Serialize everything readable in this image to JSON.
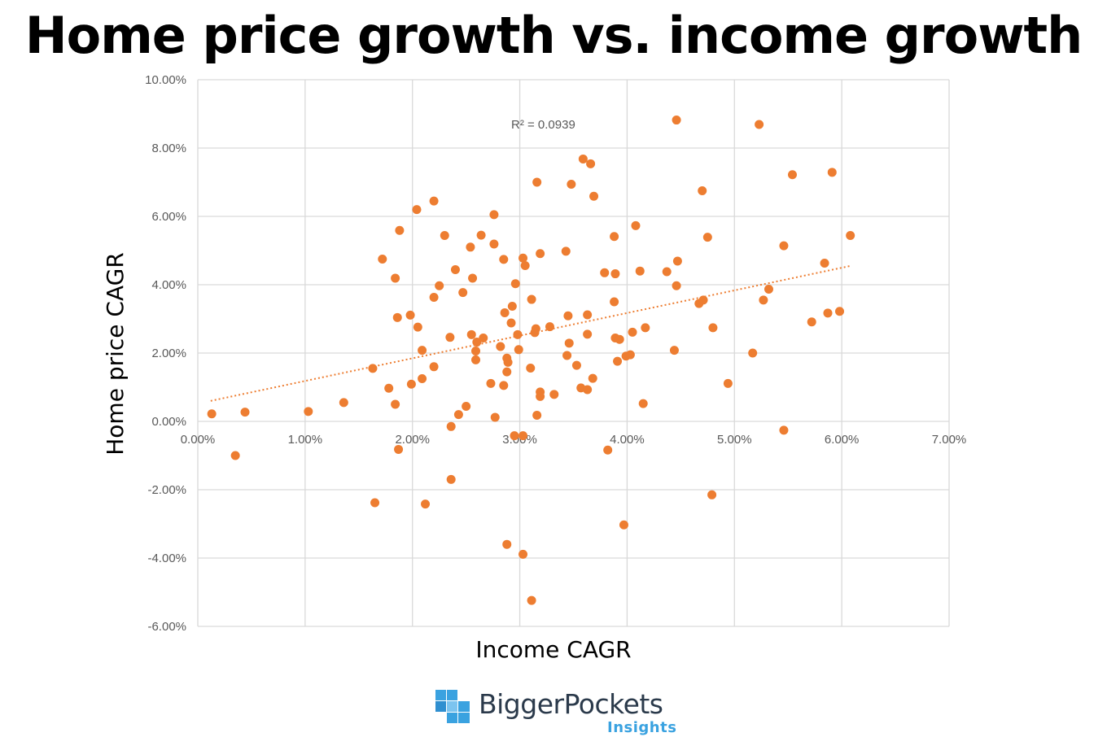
{
  "title": "Home price growth vs. income growth",
  "chart_data": {
    "type": "scatter",
    "xlabel": "Income CAGR",
    "ylabel": "Home price CAGR",
    "xlim": [
      0,
      7
    ],
    "ylim": [
      -6,
      10
    ],
    "x_ticks": [
      "0.00%",
      "1.00%",
      "2.00%",
      "3.00%",
      "4.00%",
      "5.00%",
      "6.00%",
      "7.00%"
    ],
    "y_ticks": [
      "10.00%",
      "8.00%",
      "6.00%",
      "4.00%",
      "2.00%",
      "0.00%",
      "-2.00%",
      "-4.00%",
      "-6.00%"
    ],
    "grid": true,
    "marker_color": "#ED7D31",
    "trendline": {
      "type": "linear",
      "style": "dotted",
      "color": "#ED7D31",
      "x": [
        0.12,
        6.08
      ],
      "y": [
        0.6,
        4.55
      ]
    },
    "annotation": "R² = 0.0939",
    "points": [
      [
        0.13,
        0.22
      ],
      [
        0.44,
        0.27
      ],
      [
        1.03,
        0.29
      ],
      [
        1.36,
        0.55
      ],
      [
        0.35,
        -1.0
      ],
      [
        1.63,
        1.55
      ],
      [
        1.72,
        4.75
      ],
      [
        1.78,
        0.97
      ],
      [
        1.84,
        4.19
      ],
      [
        1.86,
        3.04
      ],
      [
        1.84,
        0.5
      ],
      [
        1.88,
        5.59
      ],
      [
        1.87,
        -0.82
      ],
      [
        1.65,
        -2.38
      ],
      [
        1.98,
        3.11
      ],
      [
        2.04,
        6.2
      ],
      [
        2.05,
        2.76
      ],
      [
        2.09,
        2.08
      ],
      [
        2.09,
        1.25
      ],
      [
        1.99,
        1.09
      ],
      [
        2.12,
        -2.42
      ],
      [
        2.2,
        6.45
      ],
      [
        2.2,
        3.63
      ],
      [
        2.2,
        1.6
      ],
      [
        2.25,
        3.97
      ],
      [
        2.3,
        5.44
      ],
      [
        2.35,
        2.46
      ],
      [
        2.36,
        -0.15
      ],
      [
        2.36,
        -1.7
      ],
      [
        2.4,
        4.44
      ],
      [
        2.43,
        0.2
      ],
      [
        2.47,
        3.77
      ],
      [
        2.5,
        0.44
      ],
      [
        2.54,
        5.1
      ],
      [
        2.55,
        2.54
      ],
      [
        2.56,
        4.19
      ],
      [
        2.59,
        2.06
      ],
      [
        2.6,
        2.32
      ],
      [
        2.59,
        1.8
      ],
      [
        2.64,
        5.45
      ],
      [
        2.66,
        2.44
      ],
      [
        2.73,
        1.11
      ],
      [
        2.76,
        6.05
      ],
      [
        2.76,
        5.19
      ],
      [
        2.77,
        0.12
      ],
      [
        2.82,
        2.19
      ],
      [
        2.85,
        4.74
      ],
      [
        2.86,
        3.18
      ],
      [
        2.85,
        1.05
      ],
      [
        2.88,
        1.85
      ],
      [
        2.88,
        1.45
      ],
      [
        2.89,
        1.73
      ],
      [
        2.88,
        -3.6
      ],
      [
        2.93,
        3.37
      ],
      [
        2.92,
        2.88
      ],
      [
        2.96,
        4.03
      ],
      [
        2.98,
        2.54
      ],
      [
        2.99,
        2.1
      ],
      [
        2.95,
        -0.42
      ],
      [
        3.03,
        -0.42
      ],
      [
        3.03,
        4.78
      ],
      [
        3.05,
        4.56
      ],
      [
        3.03,
        -3.89
      ],
      [
        3.11,
        3.57
      ],
      [
        3.1,
        1.56
      ],
      [
        3.11,
        -5.24
      ],
      [
        3.14,
        2.6
      ],
      [
        3.15,
        2.71
      ],
      [
        3.16,
        7.0
      ],
      [
        3.19,
        4.91
      ],
      [
        3.19,
        0.86
      ],
      [
        3.19,
        0.73
      ],
      [
        3.16,
        0.18
      ],
      [
        3.28,
        2.77
      ],
      [
        3.32,
        0.79
      ],
      [
        3.43,
        4.98
      ],
      [
        3.44,
        1.93
      ],
      [
        3.45,
        3.09
      ],
      [
        3.46,
        2.29
      ],
      [
        3.48,
        6.94
      ],
      [
        3.53,
        1.64
      ],
      [
        3.57,
        0.98
      ],
      [
        3.59,
        7.68
      ],
      [
        3.63,
        3.12
      ],
      [
        3.63,
        2.55
      ],
      [
        3.63,
        0.93
      ],
      [
        3.66,
        7.54
      ],
      [
        3.68,
        1.26
      ],
      [
        3.69,
        6.59
      ],
      [
        3.79,
        4.35
      ],
      [
        3.82,
        -0.84
      ],
      [
        3.88,
        5.41
      ],
      [
        3.88,
        3.5
      ],
      [
        3.89,
        4.32
      ],
      [
        3.89,
        2.44
      ],
      [
        3.91,
        1.76
      ],
      [
        3.93,
        2.4
      ],
      [
        3.97,
        -3.03
      ],
      [
        3.99,
        1.91
      ],
      [
        4.03,
        1.95
      ],
      [
        4.08,
        5.73
      ],
      [
        4.05,
        2.61
      ],
      [
        4.12,
        4.4
      ],
      [
        4.15,
        0.52
      ],
      [
        4.17,
        2.74
      ],
      [
        4.37,
        4.38
      ],
      [
        4.44,
        2.08
      ],
      [
        4.46,
        8.82
      ],
      [
        4.46,
        3.97
      ],
      [
        4.47,
        4.69
      ],
      [
        4.67,
        3.45
      ],
      [
        4.71,
        3.55
      ],
      [
        4.7,
        6.75
      ],
      [
        4.75,
        5.39
      ],
      [
        4.79,
        -2.15
      ],
      [
        4.8,
        2.74
      ],
      [
        4.94,
        1.11
      ],
      [
        5.17,
        2.0
      ],
      [
        5.23,
        8.69
      ],
      [
        5.27,
        3.55
      ],
      [
        5.32,
        3.87
      ],
      [
        5.46,
        5.14
      ],
      [
        5.46,
        -0.26
      ],
      [
        5.54,
        7.22
      ],
      [
        5.72,
        2.91
      ],
      [
        5.84,
        4.63
      ],
      [
        5.87,
        3.17
      ],
      [
        5.91,
        7.29
      ],
      [
        5.98,
        3.22
      ],
      [
        6.08,
        5.44
      ]
    ]
  },
  "logo": {
    "name": "BiggerPockets",
    "subtitle": "Insights",
    "color": "#3aa2e0"
  }
}
